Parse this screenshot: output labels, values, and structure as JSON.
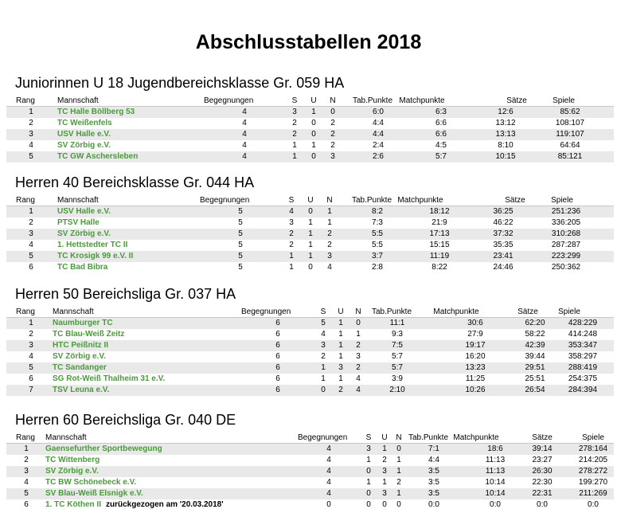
{
  "title": "Abschlusstabellen 2018",
  "headers": {
    "rang": "Rang",
    "mannschaft": "Mannschaft",
    "begegnungen": "Begegnungen",
    "s": "S",
    "u": "U",
    "n": "N",
    "tab": "Tab.Punkte",
    "match": "Matchpunkte",
    "saetze": "Sätze",
    "spiele": "Spiele"
  },
  "sections": [
    {
      "title": "Juniorinnen U 18 Jugendbereichsklasse Gr. 059 HA",
      "rows": [
        {
          "rang": "1",
          "team": "TC Halle Böllberg 53",
          "beg": "4",
          "s": "3",
          "u": "1",
          "n": "0",
          "tab": "6:0",
          "match": "6:3",
          "saetze": "12:6",
          "spiele": "85:62"
        },
        {
          "rang": "2",
          "team": "TC Weißenfels",
          "beg": "4",
          "s": "2",
          "u": "0",
          "n": "2",
          "tab": "4:4",
          "match": "6:6",
          "saetze": "13:12",
          "spiele": "108:107"
        },
        {
          "rang": "3",
          "team": "USV Halle e.V.",
          "beg": "4",
          "s": "2",
          "u": "0",
          "n": "2",
          "tab": "4:4",
          "match": "6:6",
          "saetze": "13:13",
          "spiele": "119:107"
        },
        {
          "rang": "4",
          "team": "SV Zörbig e.V.",
          "beg": "4",
          "s": "1",
          "u": "1",
          "n": "2",
          "tab": "2:4",
          "match": "4:5",
          "saetze": "8:10",
          "spiele": "64:64"
        },
        {
          "rang": "5",
          "team": "TC GW Aschersleben",
          "beg": "4",
          "s": "1",
          "u": "0",
          "n": "3",
          "tab": "2:6",
          "match": "5:7",
          "saetze": "10:15",
          "spiele": "85:121"
        }
      ]
    },
    {
      "title": "Herren 40 Bereichsklasse Gr. 044 HA",
      "rows": [
        {
          "rang": "1",
          "team": "USV Halle e.V.",
          "beg": "5",
          "s": "4",
          "u": "0",
          "n": "1",
          "tab": "8:2",
          "match": "18:12",
          "saetze": "36:25",
          "spiele": "251:236"
        },
        {
          "rang": "2",
          "team": "PTSV Halle",
          "beg": "5",
          "s": "3",
          "u": "1",
          "n": "1",
          "tab": "7:3",
          "match": "21:9",
          "saetze": "46:22",
          "spiele": "336:205"
        },
        {
          "rang": "3",
          "team": "SV Zörbig e.V.",
          "beg": "5",
          "s": "2",
          "u": "1",
          "n": "2",
          "tab": "5:5",
          "match": "17:13",
          "saetze": "37:32",
          "spiele": "310:268"
        },
        {
          "rang": "4",
          "team": "1. Hettstedter TC II",
          "beg": "5",
          "s": "2",
          "u": "1",
          "n": "2",
          "tab": "5:5",
          "match": "15:15",
          "saetze": "35:35",
          "spiele": "287:287"
        },
        {
          "rang": "5",
          "team": "TC Krosigk 99 e.V. II",
          "beg": "5",
          "s": "1",
          "u": "1",
          "n": "3",
          "tab": "3:7",
          "match": "11:19",
          "saetze": "23:41",
          "spiele": "223:299"
        },
        {
          "rang": "6",
          "team": "TC Bad Bibra",
          "beg": "5",
          "s": "1",
          "u": "0",
          "n": "4",
          "tab": "2:8",
          "match": "8:22",
          "saetze": "24:46",
          "spiele": "250:362"
        }
      ]
    },
    {
      "title": "Herren 50 Bereichsliga Gr. 037 HA",
      "rows": [
        {
          "rang": "1",
          "team": "Naumburger TC",
          "beg": "6",
          "s": "5",
          "u": "1",
          "n": "0",
          "tab": "11:1",
          "match": "30:6",
          "saetze": "62:20",
          "spiele": "428:229"
        },
        {
          "rang": "2",
          "team": "TC Blau-Weiß Zeitz",
          "beg": "6",
          "s": "4",
          "u": "1",
          "n": "1",
          "tab": "9:3",
          "match": "27:9",
          "saetze": "58:22",
          "spiele": "414:248"
        },
        {
          "rang": "3",
          "team": "HTC Peißnitz II",
          "beg": "6",
          "s": "3",
          "u": "1",
          "n": "2",
          "tab": "7:5",
          "match": "19:17",
          "saetze": "42:39",
          "spiele": "353:347"
        },
        {
          "rang": "4",
          "team": "SV Zörbig e.V.",
          "beg": "6",
          "s": "2",
          "u": "1",
          "n": "3",
          "tab": "5:7",
          "match": "16:20",
          "saetze": "39:44",
          "spiele": "358:297"
        },
        {
          "rang": "5",
          "team": "TC Sandanger",
          "beg": "6",
          "s": "1",
          "u": "3",
          "n": "2",
          "tab": "5:7",
          "match": "13:23",
          "saetze": "29:51",
          "spiele": "288:419"
        },
        {
          "rang": "6",
          "team": "SG Rot-Weiß Thalheim 31 e.V.",
          "beg": "6",
          "s": "1",
          "u": "1",
          "n": "4",
          "tab": "3:9",
          "match": "11:25",
          "saetze": "25:51",
          "spiele": "254:375"
        },
        {
          "rang": "7",
          "team": "TSV Leuna e.V.",
          "beg": "6",
          "s": "0",
          "u": "2",
          "n": "4",
          "tab": "2:10",
          "match": "10:26",
          "saetze": "26:54",
          "spiele": "284:394"
        }
      ]
    },
    {
      "title": "Herren 60 Bereichsliga Gr. 040 DE",
      "rows": [
        {
          "rang": "1",
          "team": "Gaensefurther Sportbewegung",
          "beg": "4",
          "s": "3",
          "u": "1",
          "n": "0",
          "tab": "7:1",
          "match": "18:6",
          "saetze": "39:14",
          "spiele": "278:164"
        },
        {
          "rang": "2",
          "team": "TC Wittenberg",
          "beg": "4",
          "s": "1",
          "u": "2",
          "n": "1",
          "tab": "4:4",
          "match": "11:13",
          "saetze": "23:27",
          "spiele": "214:205"
        },
        {
          "rang": "3",
          "team": "SV Zörbig e.V.",
          "beg": "4",
          "s": "0",
          "u": "3",
          "n": "1",
          "tab": "3:5",
          "match": "11:13",
          "saetze": "26:30",
          "spiele": "278:272"
        },
        {
          "rang": "4",
          "team": "TC BW Schönebeck e.V.",
          "beg": "4",
          "s": "1",
          "u": "1",
          "n": "2",
          "tab": "3:5",
          "match": "10:14",
          "saetze": "22:30",
          "spiele": "199:270"
        },
        {
          "rang": "5",
          "team": "SV Blau-Weiß Elsnigk e.V.",
          "beg": "4",
          "s": "0",
          "u": "3",
          "n": "1",
          "tab": "3:5",
          "match": "10:14",
          "saetze": "22:31",
          "spiele": "211:269"
        },
        {
          "rang": "6",
          "team": "1. TC Köthen II",
          "note": "zurückgezogen am '20.03.2018'",
          "beg": "0",
          "s": "0",
          "u": "0",
          "n": "0",
          "tab": "0:0",
          "match": "0:0",
          "saetze": "0:0",
          "spiele": "0:0"
        }
      ]
    }
  ],
  "colors": {
    "team": "#4a9a3b",
    "stripe": "#e9e9e9"
  }
}
